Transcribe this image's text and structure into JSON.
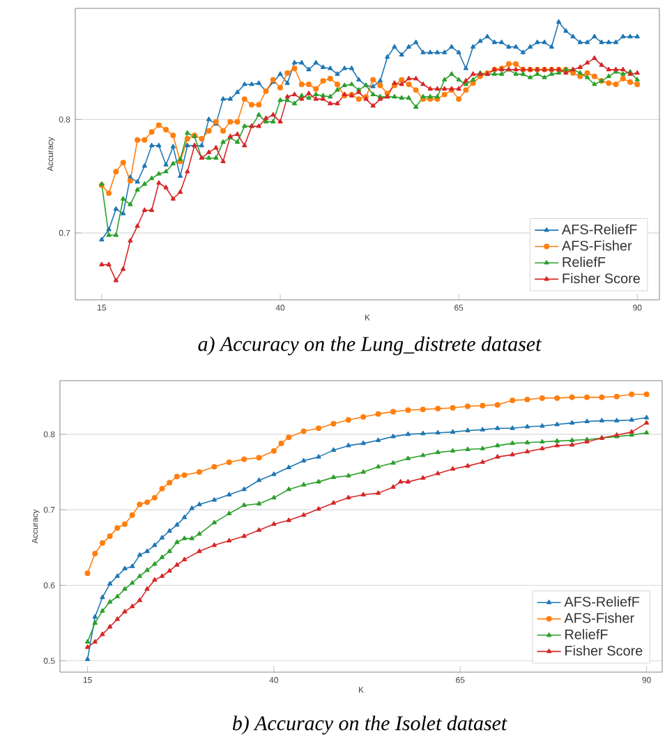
{
  "chart_data": [
    {
      "type": "line",
      "title": "a) Accuracy on the Lung_distrete dataset",
      "xlabel": "K",
      "ylabel": "Accuracy",
      "xlim": [
        11.3,
        93.1
      ],
      "ylim": [
        0.641,
        0.898
      ],
      "xticks": [
        15,
        40,
        65,
        90
      ],
      "yticks": [
        0.7,
        0.8
      ],
      "grid": "y",
      "legend": "bottom right",
      "series": [
        {
          "name": "AFS-ReliefF",
          "color": "#1f77b4",
          "marker": "triangle",
          "x": [
            15,
            16,
            17,
            18,
            19,
            20,
            21,
            22,
            23,
            24,
            25,
            26,
            27,
            28,
            29,
            30,
            31,
            32,
            33,
            34,
            35,
            36,
            37,
            38,
            39,
            40,
            41,
            42,
            43,
            44,
            45,
            46,
            47,
            48,
            49,
            50,
            51,
            52,
            53,
            54,
            55,
            56,
            57,
            58,
            59,
            60,
            61,
            62,
            63,
            64,
            65,
            66,
            67,
            68,
            69,
            70,
            71,
            72,
            73,
            74,
            75,
            76,
            77,
            78,
            79,
            80,
            81,
            82,
            83,
            84,
            85,
            86,
            87,
            88,
            89,
            90
          ],
          "values": [
            0.694,
            0.703,
            0.721,
            0.717,
            0.749,
            0.745,
            0.759,
            0.777,
            0.777,
            0.76,
            0.776,
            0.75,
            0.777,
            0.777,
            0.777,
            0.8,
            0.796,
            0.818,
            0.818,
            0.824,
            0.831,
            0.831,
            0.832,
            0.825,
            0.833,
            0.84,
            0.832,
            0.85,
            0.85,
            0.844,
            0.85,
            0.846,
            0.845,
            0.84,
            0.845,
            0.845,
            0.835,
            0.83,
            0.829,
            0.834,
            0.855,
            0.864,
            0.857,
            0.864,
            0.868,
            0.859,
            0.859,
            0.859,
            0.859,
            0.864,
            0.859,
            0.845,
            0.864,
            0.869,
            0.873,
            0.868,
            0.868,
            0.864,
            0.864,
            0.859,
            0.864,
            0.868,
            0.868,
            0.864,
            0.886,
            0.878,
            0.873,
            0.868,
            0.868,
            0.873,
            0.868,
            0.868,
            0.868,
            0.873,
            0.873,
            0.873
          ]
        },
        {
          "name": "AFS-Fisher",
          "color": "#ff7f0e",
          "marker": "circle",
          "x": [
            15,
            16,
            17,
            18,
            19,
            20,
            21,
            22,
            23,
            24,
            25,
            26,
            27,
            28,
            29,
            30,
            31,
            32,
            33,
            34,
            35,
            36,
            37,
            38,
            39,
            40,
            41,
            42,
            43,
            44,
            45,
            46,
            47,
            48,
            49,
            50,
            51,
            52,
            53,
            54,
            55,
            56,
            57,
            58,
            59,
            60,
            61,
            62,
            63,
            64,
            65,
            66,
            67,
            68,
            69,
            70,
            71,
            72,
            73,
            74,
            75,
            76,
            77,
            78,
            79,
            80,
            81,
            82,
            83,
            84,
            85,
            86,
            87,
            88,
            89,
            90
          ],
          "values": [
            0.742,
            0.735,
            0.754,
            0.762,
            0.746,
            0.782,
            0.782,
            0.789,
            0.795,
            0.791,
            0.786,
            0.763,
            0.783,
            0.786,
            0.783,
            0.79,
            0.798,
            0.79,
            0.798,
            0.798,
            0.818,
            0.813,
            0.813,
            0.825,
            0.835,
            0.828,
            0.841,
            0.845,
            0.831,
            0.831,
            0.827,
            0.834,
            0.836,
            0.831,
            0.821,
            0.822,
            0.818,
            0.82,
            0.835,
            0.83,
            0.823,
            0.83,
            0.835,
            0.831,
            0.826,
            0.818,
            0.818,
            0.818,
            0.822,
            0.826,
            0.818,
            0.826,
            0.832,
            0.838,
            0.841,
            0.844,
            0.845,
            0.849,
            0.849,
            0.844,
            0.844,
            0.844,
            0.844,
            0.844,
            0.844,
            0.844,
            0.841,
            0.838,
            0.841,
            0.838,
            0.834,
            0.832,
            0.831,
            0.836,
            0.833,
            0.831
          ]
        },
        {
          "name": "ReliefF",
          "color": "#2ca02c",
          "marker": "triangle",
          "x": [
            15,
            16,
            17,
            18,
            19,
            20,
            21,
            22,
            23,
            24,
            25,
            26,
            27,
            28,
            29,
            30,
            31,
            32,
            33,
            34,
            35,
            36,
            37,
            38,
            39,
            40,
            41,
            42,
            43,
            44,
            45,
            46,
            47,
            48,
            49,
            50,
            51,
            52,
            53,
            54,
            55,
            56,
            57,
            58,
            59,
            60,
            61,
            62,
            63,
            64,
            65,
            66,
            67,
            68,
            69,
            70,
            71,
            72,
            73,
            74,
            75,
            76,
            77,
            78,
            79,
            80,
            81,
            82,
            83,
            84,
            85,
            86,
            87,
            88,
            89,
            90
          ],
          "values": [
            0.743,
            0.698,
            0.698,
            0.73,
            0.725,
            0.738,
            0.743,
            0.748,
            0.752,
            0.754,
            0.761,
            0.765,
            0.788,
            0.785,
            0.766,
            0.766,
            0.766,
            0.78,
            0.784,
            0.78,
            0.794,
            0.794,
            0.804,
            0.798,
            0.798,
            0.817,
            0.817,
            0.814,
            0.821,
            0.819,
            0.822,
            0.821,
            0.82,
            0.826,
            0.83,
            0.831,
            0.826,
            0.83,
            0.822,
            0.82,
            0.82,
            0.82,
            0.819,
            0.819,
            0.811,
            0.82,
            0.82,
            0.82,
            0.835,
            0.84,
            0.835,
            0.831,
            0.835,
            0.841,
            0.84,
            0.84,
            0.84,
            0.844,
            0.84,
            0.84,
            0.837,
            0.84,
            0.837,
            0.84,
            0.841,
            0.844,
            0.844,
            0.841,
            0.837,
            0.831,
            0.834,
            0.838,
            0.842,
            0.84,
            0.842,
            0.835
          ]
        },
        {
          "name": "Fisher Score",
          "color": "#d62728",
          "marker": "triangle",
          "x": [
            15,
            16,
            17,
            18,
            19,
            20,
            21,
            22,
            23,
            24,
            25,
            26,
            27,
            28,
            29,
            30,
            31,
            32,
            33,
            34,
            35,
            36,
            37,
            38,
            39,
            40,
            41,
            42,
            43,
            44,
            45,
            46,
            47,
            48,
            49,
            50,
            51,
            52,
            53,
            54,
            55,
            56,
            57,
            58,
            59,
            60,
            61,
            62,
            63,
            64,
            65,
            66,
            67,
            68,
            69,
            70,
            71,
            72,
            73,
            74,
            75,
            76,
            77,
            78,
            79,
            80,
            81,
            82,
            83,
            84,
            85,
            86,
            87,
            88,
            89,
            90
          ],
          "values": [
            0.672,
            0.672,
            0.658,
            0.668,
            0.693,
            0.706,
            0.72,
            0.72,
            0.744,
            0.74,
            0.73,
            0.736,
            0.754,
            0.777,
            0.766,
            0.771,
            0.775,
            0.763,
            0.785,
            0.787,
            0.777,
            0.794,
            0.794,
            0.801,
            0.804,
            0.798,
            0.82,
            0.822,
            0.818,
            0.823,
            0.818,
            0.818,
            0.814,
            0.814,
            0.822,
            0.821,
            0.824,
            0.818,
            0.812,
            0.818,
            0.82,
            0.832,
            0.831,
            0.836,
            0.836,
            0.831,
            0.827,
            0.827,
            0.827,
            0.827,
            0.827,
            0.834,
            0.84,
            0.84,
            0.84,
            0.844,
            0.844,
            0.844,
            0.844,
            0.844,
            0.844,
            0.844,
            0.844,
            0.844,
            0.844,
            0.841,
            0.844,
            0.846,
            0.85,
            0.854,
            0.848,
            0.844,
            0.844,
            0.844,
            0.84,
            0.841
          ]
        }
      ]
    },
    {
      "type": "line",
      "title": "b) Accuracy on the Isolet dataset",
      "xlabel": "K",
      "ylabel": "Accuracy",
      "xlim": [
        11.3,
        92.1
      ],
      "ylim": [
        0.485,
        0.871
      ],
      "xticks": [
        15,
        40,
        65,
        90
      ],
      "yticks": [
        0.5,
        0.6,
        0.7,
        0.8
      ],
      "grid": "y",
      "legend": "bottom right",
      "series": [
        {
          "name": "AFS-ReliefF",
          "color": "#1f77b4",
          "marker": "triangle",
          "x": [
            15,
            16,
            17,
            18,
            19,
            20,
            21,
            22,
            23,
            24,
            25,
            26,
            27,
            28,
            29,
            30,
            32,
            34,
            36,
            38,
            40,
            42,
            44,
            46,
            48,
            50,
            52,
            54,
            56,
            58,
            60,
            62,
            64,
            66,
            68,
            70,
            72,
            74,
            76,
            78,
            80,
            82,
            84,
            86,
            88,
            90
          ],
          "values": [
            0.502,
            0.558,
            0.584,
            0.602,
            0.612,
            0.622,
            0.625,
            0.64,
            0.645,
            0.653,
            0.663,
            0.672,
            0.68,
            0.69,
            0.702,
            0.707,
            0.713,
            0.72,
            0.727,
            0.739,
            0.747,
            0.756,
            0.765,
            0.77,
            0.779,
            0.785,
            0.788,
            0.792,
            0.797,
            0.8,
            0.801,
            0.802,
            0.803,
            0.805,
            0.806,
            0.808,
            0.808,
            0.81,
            0.811,
            0.813,
            0.815,
            0.817,
            0.818,
            0.818,
            0.819,
            0.822
          ]
        },
        {
          "name": "AFS-Fisher",
          "color": "#ff7f0e",
          "marker": "circle",
          "x": [
            15,
            16,
            17,
            18,
            19,
            20,
            21,
            22,
            23,
            24,
            25,
            26,
            27,
            28,
            30,
            32,
            34,
            36,
            38,
            40,
            41,
            42,
            44,
            46,
            48,
            50,
            52,
            54,
            56,
            58,
            60,
            62,
            64,
            66,
            68,
            70,
            72,
            74,
            76,
            78,
            80,
            82,
            84,
            86,
            88,
            90
          ],
          "values": [
            0.616,
            0.642,
            0.656,
            0.665,
            0.676,
            0.681,
            0.693,
            0.707,
            0.71,
            0.716,
            0.728,
            0.736,
            0.744,
            0.746,
            0.75,
            0.757,
            0.763,
            0.767,
            0.769,
            0.778,
            0.788,
            0.796,
            0.804,
            0.808,
            0.814,
            0.819,
            0.823,
            0.827,
            0.83,
            0.832,
            0.833,
            0.834,
            0.835,
            0.837,
            0.838,
            0.839,
            0.845,
            0.846,
            0.848,
            0.848,
            0.849,
            0.849,
            0.849,
            0.85,
            0.853,
            0.853
          ]
        },
        {
          "name": "ReliefF",
          "color": "#2ca02c",
          "marker": "triangle",
          "x": [
            15,
            16,
            17,
            18,
            19,
            20,
            21,
            22,
            23,
            24,
            25,
            26,
            27,
            28,
            29,
            30,
            32,
            34,
            36,
            38,
            40,
            42,
            44,
            46,
            48,
            50,
            52,
            54,
            56,
            58,
            60,
            62,
            64,
            66,
            68,
            70,
            72,
            74,
            76,
            78,
            80,
            82,
            84,
            86,
            88,
            90
          ],
          "values": [
            0.525,
            0.55,
            0.566,
            0.578,
            0.585,
            0.595,
            0.603,
            0.612,
            0.62,
            0.628,
            0.637,
            0.645,
            0.657,
            0.662,
            0.662,
            0.668,
            0.683,
            0.695,
            0.706,
            0.708,
            0.716,
            0.727,
            0.733,
            0.737,
            0.743,
            0.745,
            0.75,
            0.757,
            0.762,
            0.768,
            0.772,
            0.776,
            0.778,
            0.78,
            0.781,
            0.785,
            0.788,
            0.789,
            0.79,
            0.791,
            0.792,
            0.793,
            0.795,
            0.797,
            0.799,
            0.802
          ]
        },
        {
          "name": "Fisher Score",
          "color": "#d62728",
          "marker": "triangle",
          "x": [
            15,
            16,
            17,
            18,
            19,
            20,
            21,
            22,
            23,
            24,
            25,
            26,
            27,
            28,
            30,
            32,
            34,
            36,
            38,
            40,
            42,
            44,
            46,
            48,
            50,
            52,
            54,
            56,
            57,
            58,
            60,
            62,
            64,
            66,
            68,
            70,
            72,
            74,
            76,
            78,
            80,
            82,
            84,
            86,
            88,
            90
          ],
          "values": [
            0.518,
            0.525,
            0.535,
            0.545,
            0.555,
            0.565,
            0.572,
            0.58,
            0.595,
            0.607,
            0.612,
            0.619,
            0.627,
            0.634,
            0.645,
            0.653,
            0.659,
            0.665,
            0.673,
            0.681,
            0.686,
            0.693,
            0.701,
            0.709,
            0.716,
            0.72,
            0.722,
            0.73,
            0.737,
            0.737,
            0.742,
            0.748,
            0.754,
            0.758,
            0.763,
            0.77,
            0.773,
            0.777,
            0.781,
            0.785,
            0.786,
            0.79,
            0.795,
            0.799,
            0.803,
            0.815
          ]
        }
      ]
    }
  ]
}
